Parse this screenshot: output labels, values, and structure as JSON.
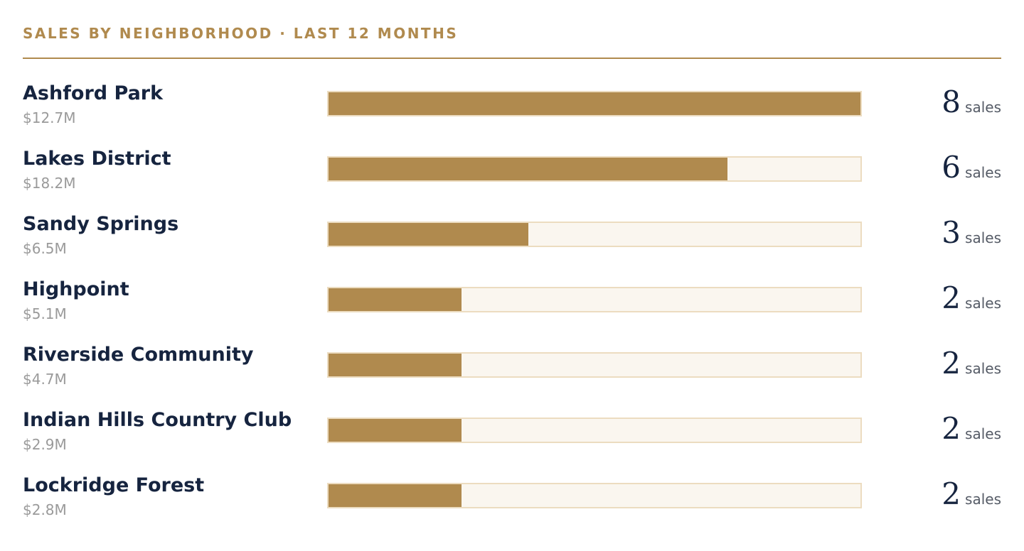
{
  "header": {
    "title": "SALES BY NEIGHBORHOOD · LAST 12 MONTHS"
  },
  "colors": {
    "accent": "#b08a4e",
    "name_text": "#16243f",
    "volume_text": "#9a9a9a",
    "track_bg": "#faf6ef",
    "track_border": "#ecdcc0"
  },
  "rows": [
    {
      "neighborhood": "Ashford Park",
      "volume": "$12.7M",
      "count": "8",
      "unit": "sales"
    },
    {
      "neighborhood": "Lakes District",
      "volume": "$18.2M",
      "count": "6",
      "unit": "sales"
    },
    {
      "neighborhood": "Sandy Springs",
      "volume": "$6.5M",
      "count": "3",
      "unit": "sales"
    },
    {
      "neighborhood": "Highpoint",
      "volume": "$5.1M",
      "count": "2",
      "unit": "sales"
    },
    {
      "neighborhood": "Riverside Community",
      "volume": "$4.7M",
      "count": "2",
      "unit": "sales"
    },
    {
      "neighborhood": "Indian Hills Country Club",
      "volume": "$2.9M",
      "count": "2",
      "unit": "sales"
    },
    {
      "neighborhood": "Lockridge Forest",
      "volume": "$2.8M",
      "count": "2",
      "unit": "sales"
    }
  ],
  "chart_data": {
    "type": "bar",
    "orientation": "horizontal",
    "title": "SALES BY NEIGHBORHOOD · LAST 12 MONTHS",
    "categories": [
      "Ashford Park",
      "Lakes District",
      "Sandy Springs",
      "Highpoint",
      "Riverside Community",
      "Indian Hills Country Club",
      "Lockridge Forest"
    ],
    "values": [
      8,
      6,
      3,
      2,
      2,
      2,
      2
    ],
    "xlim": [
      0,
      8
    ],
    "grid": false
  }
}
